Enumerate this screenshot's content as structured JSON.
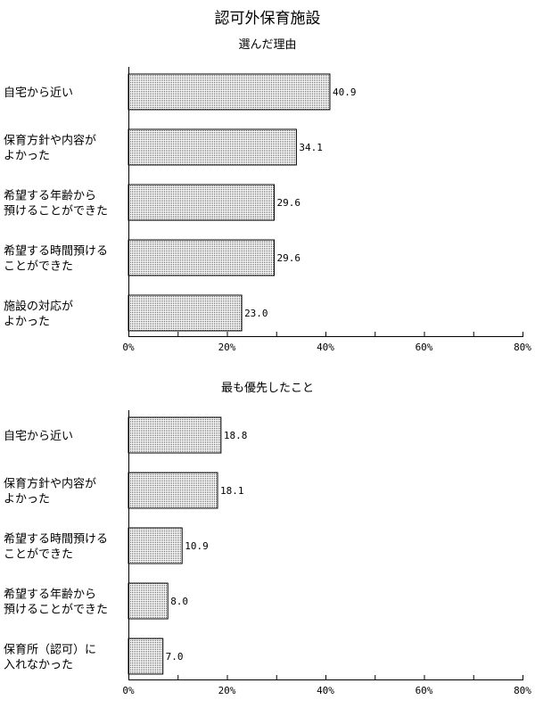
{
  "title": "認可外保育施設",
  "chart_data": [
    {
      "type": "bar",
      "title": "選んだ理由",
      "categories": [
        [
          "自宅から近い"
        ],
        [
          "保育方針や内容が",
          "よかった"
        ],
        [
          "希望する年齢から",
          "預けることができた"
        ],
        [
          "希望する時間預ける",
          "ことができた"
        ],
        [
          "施設の対応が",
          "よかった"
        ]
      ],
      "values": [
        40.9,
        34.1,
        29.6,
        29.6,
        23.0
      ],
      "value_labels": [
        "40.9",
        "34.1",
        "29.6",
        "29.6",
        "23.0"
      ],
      "xlim": [
        0,
        80
      ],
      "xticks": [
        "0%",
        "20%",
        "40%",
        "60%",
        "80%"
      ],
      "orientation": "horizontal",
      "pattern": "dotted",
      "grid": false
    },
    {
      "type": "bar",
      "title": "最も優先したこと",
      "categories": [
        [
          "自宅から近い"
        ],
        [
          "保育方針や内容が",
          "よかった"
        ],
        [
          "希望する時間預ける",
          "ことができた"
        ],
        [
          "希望する年齢から",
          "預けることができた"
        ],
        [
          "保育所（認可）に",
          "入れなかった"
        ]
      ],
      "values": [
        18.8,
        18.1,
        10.9,
        8.0,
        7.0
      ],
      "value_labels": [
        "18.8",
        "18.1",
        "10.9",
        "8.0",
        "7.0"
      ],
      "xlim": [
        0,
        80
      ],
      "xticks": [
        "0%",
        "20%",
        "40%",
        "60%",
        "80%"
      ],
      "orientation": "horizontal",
      "pattern": "dotted",
      "grid": false
    }
  ]
}
